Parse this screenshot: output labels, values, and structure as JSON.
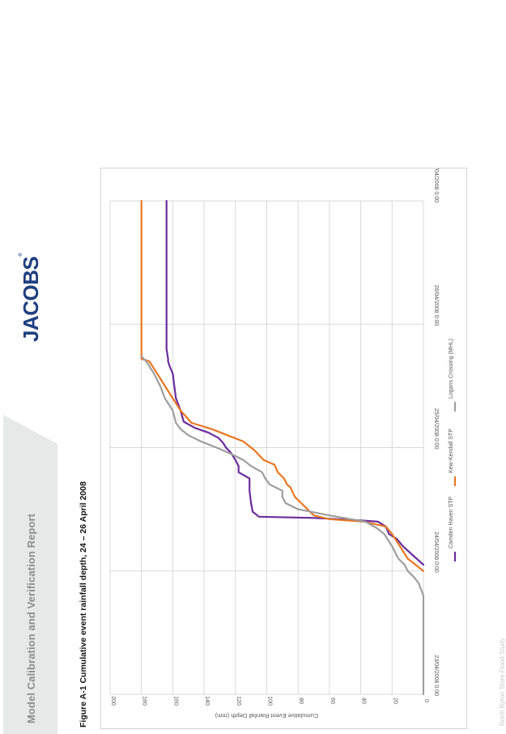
{
  "report": {
    "title": "Model Calibration and Verification Report",
    "logo_text": "JACOBS",
    "logo_mark": "®",
    "footer_text": "North Byron Shire Flood Study",
    "figure_caption": "Figure A-1 Cumulative event rainfall depth, 24 – 26 April 2008"
  },
  "chart_data": {
    "type": "line",
    "xlabel": "",
    "ylabel": "Cumulative Event Rainfall Depth (mm)",
    "x_tick_labels": [
      "23/04/2008 0:00",
      "24/04/2008 0:00",
      "25/04/2008 0:00",
      "26/04/2008 0:00",
      "27/04/2008 0:00"
    ],
    "xlim_days": [
      0,
      4
    ],
    "ylim": [
      0,
      200
    ],
    "y_ticks": [
      0,
      20,
      40,
      60,
      80,
      100,
      120,
      140,
      160,
      180,
      200
    ],
    "grid": true,
    "rotated": "page-landscape",
    "legend_position": "bottom",
    "series": [
      {
        "name": "Camden Haven STP",
        "color": "#6a2d9c",
        "x": [
          1.05,
          1.13,
          1.2,
          1.26,
          1.3,
          1.36,
          1.4,
          1.41,
          1.43,
          1.44,
          1.46,
          1.48,
          1.55,
          1.65,
          1.75,
          1.8,
          1.85,
          1.9,
          1.96,
          2.0,
          2.04,
          2.08,
          2.12,
          2.16,
          2.21,
          2.3,
          2.4,
          2.5,
          2.6,
          2.66,
          2.7,
          2.72,
          2.8,
          3.0,
          3.3,
          3.7,
          4.0
        ],
        "y": [
          0,
          7,
          13,
          17,
          22,
          24,
          29,
          40,
          70,
          105,
          107,
          109,
          110,
          111,
          111,
          118,
          118,
          120,
          123,
          126,
          128,
          131,
          137,
          146,
          153,
          155,
          158,
          159,
          160,
          162,
          163,
          163,
          164,
          164,
          164,
          164,
          164
        ]
      },
      {
        "name": "Kew-Kendall STP",
        "color": "#e87722",
        "x": [
          1.0,
          1.05,
          1.1,
          1.2,
          1.3,
          1.36,
          1.4,
          1.42,
          1.45,
          1.5,
          1.55,
          1.6,
          1.68,
          1.7,
          1.75,
          1.8,
          1.86,
          1.9,
          1.98,
          2.05,
          2.1,
          2.15,
          2.2,
          2.3,
          2.4,
          2.5,
          2.6,
          2.7,
          2.72,
          2.8,
          3.0,
          3.3,
          3.7,
          4.0
        ],
        "y": [
          0,
          5,
          10,
          15,
          20,
          24,
          38,
          60,
          70,
          74,
          78,
          82,
          85,
          87,
          89,
          93,
          95,
          102,
          108,
          115,
          125,
          135,
          148,
          155,
          160,
          165,
          170,
          175,
          180,
          180,
          180,
          180,
          180,
          180
        ]
      },
      {
        "name": "Logans Crossing (MHL)",
        "color": "#9e9e9e",
        "x": [
          0,
          0.8,
          0.9,
          0.95,
          1.0,
          1.05,
          1.1,
          1.2,
          1.3,
          1.35,
          1.4,
          1.45,
          1.5,
          1.55,
          1.6,
          1.65,
          1.7,
          1.75,
          1.8,
          1.85,
          1.9,
          1.95,
          2.0,
          2.05,
          2.1,
          2.15,
          2.2,
          2.3,
          2.4,
          2.5,
          2.6,
          2.7,
          2.74
        ],
        "y": [
          0,
          0,
          3,
          6,
          10,
          12,
          16,
          20,
          25,
          30,
          37,
          60,
          80,
          88,
          90,
          90,
          98,
          101,
          103,
          110,
          115,
          123,
          132,
          142,
          150,
          155,
          158,
          160,
          165,
          168,
          172,
          177,
          180
        ]
      }
    ]
  }
}
